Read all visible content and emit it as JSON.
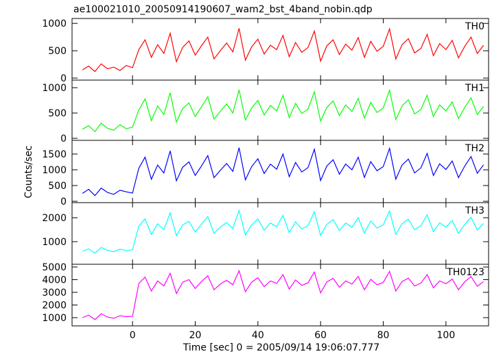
{
  "chart_data": [
    {
      "type": "line",
      "title": "ae100021010_20050914190607_wam2_bst_4band_nobin.qdp",
      "x": [
        -16,
        -14,
        -12,
        -10,
        -8,
        -6,
        -4,
        -2,
        0,
        2,
        4,
        6,
        8,
        10,
        12,
        14,
        16,
        18,
        20,
        22,
        24,
        26,
        28,
        30,
        32,
        34,
        36,
        38,
        40,
        42,
        44,
        46,
        48,
        50,
        52,
        54,
        56,
        58,
        60,
        62,
        64,
        66,
        68,
        70,
        72,
        74,
        76,
        78,
        80,
        82,
        84,
        86,
        88,
        90,
        92,
        94,
        96,
        98,
        100,
        102,
        104,
        106,
        108,
        110,
        112
      ],
      "series": [
        {
          "name": "TH0",
          "color": "#ff0000",
          "values": [
            150,
            220,
            120,
            260,
            170,
            200,
            140,
            230,
            190,
            520,
            700,
            380,
            610,
            450,
            820,
            300,
            560,
            680,
            420,
            590,
            750,
            350,
            500,
            640,
            480,
            910,
            330,
            570,
            710,
            440,
            600,
            520,
            780,
            390,
            650,
            470,
            560,
            860,
            310,
            590,
            700,
            430,
            620,
            510,
            740,
            380,
            670,
            490,
            580,
            900,
            350,
            610,
            720,
            460,
            540,
            800,
            410,
            630,
            520,
            690,
            370,
            580,
            750,
            450,
            600
          ]
        }
      ],
      "xlim": [
        -19.3,
        113.6
      ],
      "ylim": [
        -37,
        1090
      ],
      "yticks": [
        0,
        500,
        1000
      ]
    },
    {
      "type": "line",
      "x": [
        -16,
        -14,
        -12,
        -10,
        -8,
        -6,
        -4,
        -2,
        0,
        2,
        4,
        6,
        8,
        10,
        12,
        14,
        16,
        18,
        20,
        22,
        24,
        26,
        28,
        30,
        32,
        34,
        36,
        38,
        40,
        42,
        44,
        46,
        48,
        50,
        52,
        54,
        56,
        58,
        60,
        62,
        64,
        66,
        68,
        70,
        72,
        74,
        76,
        78,
        80,
        82,
        84,
        86,
        88,
        90,
        92,
        94,
        96,
        98,
        100,
        102,
        104,
        106,
        108,
        110,
        112
      ],
      "series": [
        {
          "name": "TH1",
          "color": "#00ff00",
          "values": [
            180,
            250,
            130,
            300,
            200,
            160,
            270,
            190,
            220,
            560,
            780,
            350,
            640,
            470,
            900,
            320,
            590,
            700,
            430,
            620,
            820,
            380,
            530,
            680,
            500,
            960,
            360,
            600,
            750,
            460,
            650,
            540,
            850,
            410,
            690,
            490,
            580,
            920,
            340,
            610,
            740,
            450,
            660,
            530,
            790,
            400,
            710,
            510,
            600,
            950,
            370,
            640,
            760,
            480,
            570,
            850,
            430,
            660,
            540,
            720,
            390,
            610,
            800,
            470,
            630
          ]
        }
      ],
      "xlim": [
        -19.3,
        113.6
      ],
      "ylim": [
        -40,
        1150
      ],
      "yticks": [
        0,
        500,
        1000
      ]
    },
    {
      "type": "line",
      "ylabel": "Counts/sec",
      "x": [
        -16,
        -14,
        -12,
        -10,
        -8,
        -6,
        -4,
        -2,
        0,
        2,
        4,
        6,
        8,
        10,
        12,
        14,
        16,
        18,
        20,
        22,
        24,
        26,
        28,
        30,
        32,
        34,
        36,
        38,
        40,
        42,
        44,
        46,
        48,
        50,
        52,
        54,
        56,
        58,
        60,
        62,
        64,
        66,
        68,
        70,
        72,
        74,
        76,
        78,
        80,
        82,
        84,
        86,
        88,
        90,
        92,
        94,
        96,
        98,
        100,
        102,
        104,
        106,
        108,
        110,
        112
      ],
      "series": [
        {
          "name": "TH2",
          "color": "#0000ff",
          "values": [
            250,
            380,
            180,
            420,
            280,
            220,
            350,
            300,
            260,
            1050,
            1400,
            700,
            1150,
            900,
            1600,
            650,
            1080,
            1250,
            820,
            1120,
            1450,
            750,
            980,
            1200,
            950,
            1700,
            680,
            1100,
            1350,
            880,
            1180,
            1020,
            1500,
            780,
            1230,
            930,
            1070,
            1650,
            660,
            1120,
            1320,
            860,
            1180,
            1000,
            1400,
            760,
            1260,
            970,
            1100,
            1680,
            700,
            1150,
            1340,
            900,
            1060,
            1520,
            820,
            1190,
            1010,
            1280,
            750,
            1120,
            1420,
            890,
            1160
          ]
        }
      ],
      "xlim": [
        -19.3,
        113.6
      ],
      "ylim": [
        -43,
        1935
      ],
      "yticks": [
        0,
        500,
        1000,
        1500
      ]
    },
    {
      "type": "line",
      "x": [
        -16,
        -14,
        -12,
        -10,
        -8,
        -6,
        -4,
        -2,
        0,
        2,
        4,
        6,
        8,
        10,
        12,
        14,
        16,
        18,
        20,
        22,
        24,
        26,
        28,
        30,
        32,
        34,
        36,
        38,
        40,
        42,
        44,
        46,
        48,
        50,
        52,
        54,
        56,
        58,
        60,
        62,
        64,
        66,
        68,
        70,
        72,
        74,
        76,
        78,
        80,
        82,
        84,
        86,
        88,
        90,
        92,
        94,
        96,
        98,
        100,
        102,
        104,
        106,
        108,
        110,
        112
      ],
      "series": [
        {
          "name": "TH3",
          "color": "#00ffff",
          "values": [
            600,
            700,
            520,
            760,
            640,
            580,
            690,
            620,
            660,
            1650,
            1950,
            1300,
            1750,
            1500,
            2200,
            1250,
            1700,
            1850,
            1400,
            1720,
            2050,
            1350,
            1600,
            1800,
            1550,
            2300,
            1280,
            1700,
            1950,
            1480,
            1780,
            1620,
            2100,
            1380,
            1830,
            1530,
            1670,
            2250,
            1260,
            1720,
            1920,
            1460,
            1780,
            1600,
            2000,
            1360,
            1860,
            1570,
            1700,
            2280,
            1300,
            1750,
            1940,
            1500,
            1660,
            2120,
            1420,
            1790,
            1610,
            1880,
            1350,
            1720,
            2020,
            1490,
            1760
          ]
        }
      ],
      "xlim": [
        -19.3,
        113.6
      ],
      "ylim": [
        57,
        2630
      ],
      "yticks": [
        1000,
        2000
      ]
    },
    {
      "type": "line",
      "xlabel": "Time [sec] 0 = 2005/09/14 19:06:07.777",
      "x": [
        -16,
        -14,
        -12,
        -10,
        -8,
        -6,
        -4,
        -2,
        0,
        2,
        4,
        6,
        8,
        10,
        12,
        14,
        16,
        18,
        20,
        22,
        24,
        26,
        28,
        30,
        32,
        34,
        36,
        38,
        40,
        42,
        44,
        46,
        48,
        50,
        52,
        54,
        56,
        58,
        60,
        62,
        64,
        66,
        68,
        70,
        72,
        74,
        76,
        78,
        80,
        82,
        84,
        86,
        88,
        90,
        92,
        94,
        96,
        98,
        100,
        102,
        104,
        106,
        108,
        110,
        112
      ],
      "series": [
        {
          "name": "TH0123",
          "color": "#ff00ff",
          "values": [
            1000,
            1200,
            850,
            1300,
            1050,
            950,
            1150,
            1080,
            1100,
            3700,
            4200,
            3100,
            3900,
            3500,
            4500,
            2900,
            3800,
            4000,
            3300,
            3850,
            4300,
            3200,
            3650,
            3950,
            3600,
            4700,
            3050,
            3800,
            4150,
            3450,
            3900,
            3700,
            4400,
            3250,
            3980,
            3550,
            3750,
            4600,
            2950,
            3820,
            4100,
            3400,
            3900,
            3650,
            4250,
            3200,
            4020,
            3600,
            3780,
            4650,
            3100,
            3850,
            4120,
            3500,
            3720,
            4400,
            3350,
            3900,
            3680,
            4050,
            3200,
            3830,
            4250,
            3480,
            3850
          ]
        }
      ],
      "xlim": [
        -19.3,
        113.6
      ],
      "ylim": [
        350,
        5216
      ],
      "yticks": [
        1000,
        2000,
        3000,
        4000,
        5000
      ],
      "xticks": [
        0,
        20,
        40,
        60,
        80,
        100
      ]
    }
  ]
}
